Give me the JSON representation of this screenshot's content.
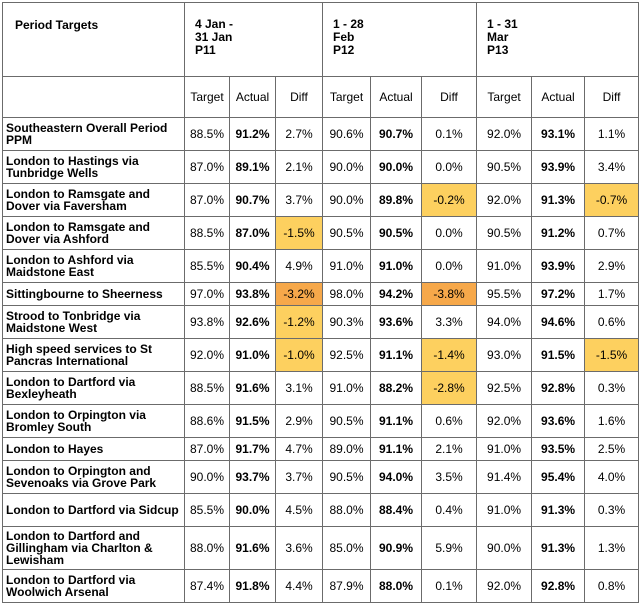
{
  "header": {
    "title": "Period Targets",
    "periods": [
      {
        "line1": "4 Jan -",
        "line2": "31 Jan",
        "line3": "P11"
      },
      {
        "line1": "1 - 28",
        "line2": "Feb",
        "line3": "P12"
      },
      {
        "line1": "1 - 31",
        "line2": "Mar",
        "line3": "P13"
      }
    ],
    "col_labels": {
      "target": "Target",
      "actual": "Actual",
      "diff": "Diff"
    }
  },
  "highlight_colors": {
    "yellow": "#fdd05f",
    "orange": "#f6a84a"
  },
  "rows": [
    {
      "route": "Southeastern Overall Period PPM",
      "cells": [
        {
          "target": "88.5%",
          "actual": "91.2%",
          "diff": "2.7%",
          "hl": ""
        },
        {
          "target": "90.6%",
          "actual": "90.7%",
          "diff": "0.1%",
          "hl": ""
        },
        {
          "target": "92.0%",
          "actual": "93.1%",
          "diff": "1.1%",
          "hl": ""
        }
      ]
    },
    {
      "route": "London to Hastings via Tunbridge Wells",
      "cells": [
        {
          "target": "87.0%",
          "actual": "89.1%",
          "diff": "2.1%",
          "hl": ""
        },
        {
          "target": "90.0%",
          "actual": "90.0%",
          "diff": "0.0%",
          "hl": ""
        },
        {
          "target": "90.5%",
          "actual": "93.9%",
          "diff": "3.4%",
          "hl": ""
        }
      ]
    },
    {
      "route": "London to Ramsgate and Dover via Faversham",
      "cells": [
        {
          "target": "87.0%",
          "actual": "90.7%",
          "diff": "3.7%",
          "hl": ""
        },
        {
          "target": "90.0%",
          "actual": "89.8%",
          "diff": "-0.2%",
          "hl": "yellow"
        },
        {
          "target": "92.0%",
          "actual": "91.3%",
          "diff": "-0.7%",
          "hl": "yellow"
        }
      ]
    },
    {
      "route": "London to Ramsgate and Dover via Ashford",
      "cells": [
        {
          "target": "88.5%",
          "actual": "87.0%",
          "diff": "-1.5%",
          "hl": "yellow"
        },
        {
          "target": "90.5%",
          "actual": "90.5%",
          "diff": "0.0%",
          "hl": ""
        },
        {
          "target": "90.5%",
          "actual": "91.2%",
          "diff": "0.7%",
          "hl": ""
        }
      ]
    },
    {
      "route": "London to Ashford via Maidstone East",
      "cells": [
        {
          "target": "85.5%",
          "actual": "90.4%",
          "diff": "4.9%",
          "hl": ""
        },
        {
          "target": "91.0%",
          "actual": "91.0%",
          "diff": "0.0%",
          "hl": ""
        },
        {
          "target": "91.0%",
          "actual": "93.9%",
          "diff": "2.9%",
          "hl": ""
        }
      ]
    },
    {
      "route": "Sittingbourne to Sheerness",
      "cells": [
        {
          "target": "97.0%",
          "actual": "93.8%",
          "diff": "-3.2%",
          "hl": "orange"
        },
        {
          "target": "98.0%",
          "actual": "94.2%",
          "diff": "-3.8%",
          "hl": "orange"
        },
        {
          "target": "95.5%",
          "actual": "97.2%",
          "diff": "1.7%",
          "hl": ""
        }
      ]
    },
    {
      "route": "Strood to Tonbridge via Maidstone West",
      "cells": [
        {
          "target": "93.8%",
          "actual": "92.6%",
          "diff": "-1.2%",
          "hl": "yellow"
        },
        {
          "target": "90.3%",
          "actual": "93.6%",
          "diff": "3.3%",
          "hl": ""
        },
        {
          "target": "94.0%",
          "actual": "94.6%",
          "diff": "0.6%",
          "hl": ""
        }
      ]
    },
    {
      "route": "High speed services to St Pancras International",
      "cells": [
        {
          "target": "92.0%",
          "actual": "91.0%",
          "diff": "-1.0%",
          "hl": "yellow"
        },
        {
          "target": "92.5%",
          "actual": "91.1%",
          "diff": "-1.4%",
          "hl": "yellow"
        },
        {
          "target": "93.0%",
          "actual": "91.5%",
          "diff": "-1.5%",
          "hl": "yellow"
        }
      ]
    },
    {
      "route": "London to Dartford via Bexleyheath",
      "cells": [
        {
          "target": "88.5%",
          "actual": "91.6%",
          "diff": "3.1%",
          "hl": ""
        },
        {
          "target": "91.0%",
          "actual": "88.2%",
          "diff": "-2.8%",
          "hl": "yellow"
        },
        {
          "target": "92.5%",
          "actual": "92.8%",
          "diff": "0.3%",
          "hl": ""
        }
      ]
    },
    {
      "route": "London to Orpington via Bromley South",
      "cells": [
        {
          "target": "88.6%",
          "actual": "91.5%",
          "diff": "2.9%",
          "hl": ""
        },
        {
          "target": "90.5%",
          "actual": "91.1%",
          "diff": "0.6%",
          "hl": ""
        },
        {
          "target": "92.0%",
          "actual": "93.6%",
          "diff": "1.6%",
          "hl": ""
        }
      ]
    },
    {
      "route": "London to Hayes",
      "cells": [
        {
          "target": "87.0%",
          "actual": "91.7%",
          "diff": "4.7%",
          "hl": ""
        },
        {
          "target": "89.0%",
          "actual": "91.1%",
          "diff": "2.1%",
          "hl": ""
        },
        {
          "target": "91.0%",
          "actual": "93.5%",
          "diff": "2.5%",
          "hl": ""
        }
      ]
    },
    {
      "route": "London to Orpington and Sevenoaks via Grove Park",
      "cells": [
        {
          "target": "90.0%",
          "actual": "93.7%",
          "diff": "3.7%",
          "hl": ""
        },
        {
          "target": "90.5%",
          "actual": "94.0%",
          "diff": "3.5%",
          "hl": ""
        },
        {
          "target": "91.4%",
          "actual": "95.4%",
          "diff": "4.0%",
          "hl": ""
        }
      ]
    },
    {
      "route": "London to Dartford via Sidcup",
      "cells": [
        {
          "target": "85.5%",
          "actual": "90.0%",
          "diff": "4.5%",
          "hl": ""
        },
        {
          "target": "88.0%",
          "actual": "88.4%",
          "diff": "0.4%",
          "hl": ""
        },
        {
          "target": "91.0%",
          "actual": "91.3%",
          "diff": "0.3%",
          "hl": ""
        }
      ]
    },
    {
      "route": "London to Dartford and Gillingham via Charlton & Lewisham",
      "cells": [
        {
          "target": "88.0%",
          "actual": "91.6%",
          "diff": "3.6%",
          "hl": ""
        },
        {
          "target": "85.0%",
          "actual": "90.9%",
          "diff": "5.9%",
          "hl": ""
        },
        {
          "target": "90.0%",
          "actual": "91.3%",
          "diff": "1.3%",
          "hl": ""
        }
      ]
    },
    {
      "route": "London to Dartford via Woolwich Arsenal",
      "cells": [
        {
          "target": "87.4%",
          "actual": "91.8%",
          "diff": "4.4%",
          "hl": ""
        },
        {
          "target": "87.9%",
          "actual": "88.0%",
          "diff": "0.1%",
          "hl": ""
        },
        {
          "target": "92.0%",
          "actual": "92.8%",
          "diff": "0.8%",
          "hl": ""
        }
      ]
    }
  ]
}
